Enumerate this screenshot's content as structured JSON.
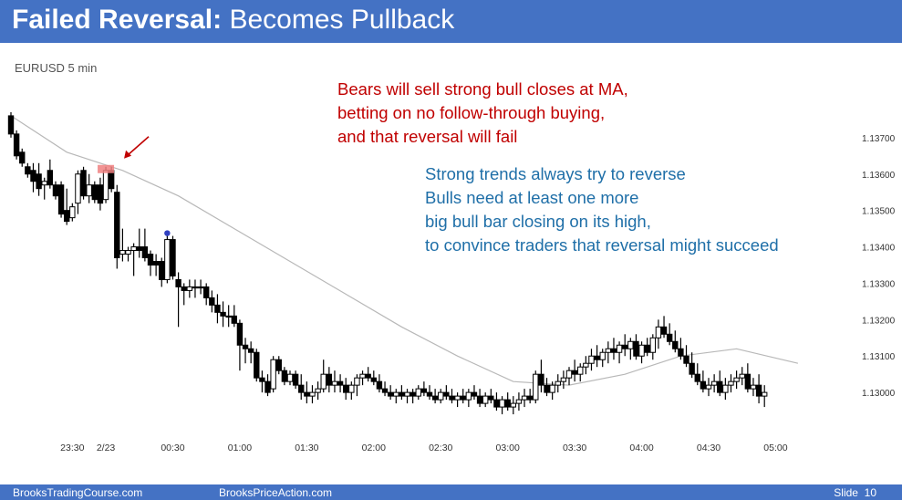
{
  "slide": {
    "title_bold": "Failed Reversal:",
    "title_rest": " Becomes Pullback"
  },
  "annotations": {
    "bears": [
      "Bears will sell strong bull closes at MA,",
      "betting on no follow-through buying,",
      "and that reversal will fail"
    ],
    "bulls": [
      "Strong trends always try to reverse",
      "Bulls need at least one more",
      "big bull bar closing on its high,",
      "to convince traders that reversal might succeed"
    ]
  },
  "footer": {
    "left": "BrooksTradingCourse.com",
    "middle": "BrooksPriceAction.com",
    "slide_label": "Slide",
    "slide_number": "10"
  },
  "colors": {
    "header_bg": "#4472c4",
    "bear_bar": "#000000",
    "bull_bar": "#ffffff",
    "moving_average": "#b8b8b8",
    "highlight_box": "#f08080",
    "arrow": "#c00000",
    "marker_dot": "#3040c0"
  },
  "chart_data": {
    "type": "candlestick",
    "label": "EURUSD 5 min",
    "xlabels": [
      "23:30",
      "2/23",
      "00:30",
      "01:00",
      "01:30",
      "02:00",
      "02:30",
      "03:00",
      "03:30",
      "04:00",
      "04:30",
      "05:00"
    ],
    "xlabel_bar_index": [
      11,
      17,
      29,
      41,
      53,
      65,
      77,
      89,
      101,
      113,
      125,
      137
    ],
    "ytick_labels": [
      "1.13000",
      "1.13100",
      "1.13200",
      "1.13300",
      "1.13400",
      "1.13500",
      "1.13600",
      "1.13700"
    ],
    "ytick_values": [
      1.13,
      1.131,
      1.132,
      1.133,
      1.134,
      1.135,
      1.136,
      1.137
    ],
    "ylim": [
      1.1288,
      1.1384
    ],
    "grid": false,
    "bars": [
      [
        1.1376,
        1.1377,
        1.137,
        1.1371
      ],
      [
        1.1371,
        1.1372,
        1.1364,
        1.1365
      ],
      [
        1.1366,
        1.1367,
        1.1362,
        1.1363
      ],
      [
        1.1362,
        1.1363,
        1.1359,
        1.136
      ],
      [
        1.1361,
        1.1363,
        1.1355,
        1.1358
      ],
      [
        1.136,
        1.1363,
        1.1354,
        1.1356
      ],
      [
        1.1357,
        1.1359,
        1.1353,
        1.1358
      ],
      [
        1.1361,
        1.1364,
        1.1356,
        1.1357
      ],
      [
        1.1357,
        1.1358,
        1.1353,
        1.1354
      ],
      [
        1.1357,
        1.1358,
        1.1348,
        1.1349
      ],
      [
        1.135,
        1.1356,
        1.1346,
        1.1347
      ],
      [
        1.1348,
        1.1352,
        1.1347,
        1.1351
      ],
      [
        1.1352,
        1.1361,
        1.1349,
        1.136
      ],
      [
        1.1361,
        1.1362,
        1.1353,
        1.1354
      ],
      [
        1.1354,
        1.136,
        1.1352,
        1.1357
      ],
      [
        1.1357,
        1.1358,
        1.1352,
        1.1353
      ],
      [
        1.1357,
        1.1359,
        1.135,
        1.1352
      ],
      [
        1.1353,
        1.1362,
        1.1352,
        1.1361
      ],
      [
        1.1361,
        1.1362,
        1.1355,
        1.1356
      ],
      [
        1.1355,
        1.1357,
        1.1334,
        1.1337
      ],
      [
        1.1338,
        1.1345,
        1.1336,
        1.1339
      ],
      [
        1.1338,
        1.134,
        1.1336,
        1.1339
      ],
      [
        1.1339,
        1.1341,
        1.1332,
        1.134
      ],
      [
        1.134,
        1.1345,
        1.1337,
        1.1339
      ],
      [
        1.134,
        1.1345,
        1.1336,
        1.1337
      ],
      [
        1.1338,
        1.1339,
        1.1332,
        1.1335
      ],
      [
        1.1336,
        1.1338,
        1.1332,
        1.1335
      ],
      [
        1.1336,
        1.1337,
        1.1329,
        1.1331
      ],
      [
        1.1331,
        1.1343,
        1.133,
        1.1342
      ],
      [
        1.1342,
        1.1343,
        1.1331,
        1.1332
      ],
      [
        1.1331,
        1.1333,
        1.1318,
        1.1329
      ],
      [
        1.1329,
        1.133,
        1.1324,
        1.1328
      ],
      [
        1.1328,
        1.1331,
        1.1326,
        1.1329
      ],
      [
        1.1329,
        1.1331,
        1.1326,
        1.1329
      ],
      [
        1.1329,
        1.1331,
        1.1327,
        1.1329
      ],
      [
        1.1329,
        1.133,
        1.1324,
        1.1326
      ],
      [
        1.1326,
        1.1328,
        1.1322,
        1.1324
      ],
      [
        1.1324,
        1.1327,
        1.1319,
        1.1322
      ],
      [
        1.1322,
        1.1325,
        1.1318,
        1.1321
      ],
      [
        1.1321,
        1.1324,
        1.1318,
        1.1321
      ],
      [
        1.1321,
        1.1324,
        1.1318,
        1.1319
      ],
      [
        1.1319,
        1.132,
        1.1306,
        1.1313
      ],
      [
        1.1313,
        1.1315,
        1.1308,
        1.1312
      ],
      [
        1.1312,
        1.1314,
        1.1308,
        1.1311
      ],
      [
        1.1311,
        1.1312,
        1.1303,
        1.1304
      ],
      [
        1.1304,
        1.1306,
        1.13,
        1.1303
      ],
      [
        1.1303,
        1.1305,
        1.1299,
        1.13
      ],
      [
        1.1301,
        1.131,
        1.13,
        1.1309
      ],
      [
        1.1309,
        1.131,
        1.1305,
        1.1306
      ],
      [
        1.1306,
        1.1307,
        1.1302,
        1.1303
      ],
      [
        1.1303,
        1.1306,
        1.1302,
        1.1305
      ],
      [
        1.1305,
        1.1306,
        1.1301,
        1.1302
      ],
      [
        1.1302,
        1.1305,
        1.1298,
        1.13
      ],
      [
        1.13,
        1.1303,
        1.1297,
        1.1299
      ],
      [
        1.1299,
        1.1302,
        1.1297,
        1.13
      ],
      [
        1.13,
        1.1303,
        1.1298,
        1.1301
      ],
      [
        1.1301,
        1.1309,
        1.13,
        1.1305
      ],
      [
        1.1305,
        1.1307,
        1.13,
        1.1302
      ],
      [
        1.1302,
        1.1306,
        1.13,
        1.1303
      ],
      [
        1.1303,
        1.1305,
        1.13,
        1.1302
      ],
      [
        1.1302,
        1.1304,
        1.1298,
        1.13
      ],
      [
        1.13,
        1.1303,
        1.1298,
        1.1302
      ],
      [
        1.1302,
        1.1305,
        1.1299,
        1.1304
      ],
      [
        1.1304,
        1.1306,
        1.1302,
        1.1305
      ],
      [
        1.1305,
        1.1307,
        1.1303,
        1.1304
      ],
      [
        1.1304,
        1.1306,
        1.1302,
        1.1303
      ],
      [
        1.1303,
        1.1305,
        1.13,
        1.1301
      ],
      [
        1.1301,
        1.1303,
        1.1299,
        1.13
      ],
      [
        1.13,
        1.1302,
        1.1298,
        1.1299
      ],
      [
        1.1299,
        1.1301,
        1.1297,
        1.13
      ],
      [
        1.13,
        1.1302,
        1.1298,
        1.1299
      ],
      [
        1.1299,
        1.1301,
        1.1297,
        1.13
      ],
      [
        1.13,
        1.1301,
        1.1297,
        1.1299
      ],
      [
        1.1299,
        1.1302,
        1.1298,
        1.1301
      ],
      [
        1.1301,
        1.1303,
        1.1299,
        1.13
      ],
      [
        1.13,
        1.1302,
        1.1298,
        1.1299
      ],
      [
        1.1299,
        1.1301,
        1.1297,
        1.1298
      ],
      [
        1.1298,
        1.1301,
        1.1297,
        1.13
      ],
      [
        1.13,
        1.1302,
        1.1298,
        1.1299
      ],
      [
        1.1299,
        1.1301,
        1.1297,
        1.1298
      ],
      [
        1.1298,
        1.13,
        1.1296,
        1.1299
      ],
      [
        1.1299,
        1.1301,
        1.1297,
        1.1298
      ],
      [
        1.1298,
        1.1301,
        1.1296,
        1.13
      ],
      [
        1.13,
        1.1302,
        1.1298,
        1.1299
      ],
      [
        1.1299,
        1.1301,
        1.1296,
        1.1297
      ],
      [
        1.1297,
        1.13,
        1.1296,
        1.1299
      ],
      [
        1.1299,
        1.1301,
        1.1297,
        1.1298
      ],
      [
        1.1298,
        1.13,
        1.1295,
        1.1296
      ],
      [
        1.1296,
        1.1299,
        1.1294,
        1.1298
      ],
      [
        1.1298,
        1.13,
        1.1295,
        1.1296
      ],
      [
        1.1296,
        1.1299,
        1.1294,
        1.1297
      ],
      [
        1.1297,
        1.13,
        1.1295,
        1.1298
      ],
      [
        1.1298,
        1.1301,
        1.1296,
        1.1299
      ],
      [
        1.1299,
        1.1301,
        1.1297,
        1.1298
      ],
      [
        1.1298,
        1.1306,
        1.1297,
        1.1305
      ],
      [
        1.1305,
        1.1309,
        1.13,
        1.1302
      ],
      [
        1.1302,
        1.1304,
        1.1299,
        1.13
      ],
      [
        1.13,
        1.1303,
        1.1298,
        1.1302
      ],
      [
        1.1302,
        1.1305,
        1.13,
        1.1303
      ],
      [
        1.1303,
        1.1306,
        1.1301,
        1.1304
      ],
      [
        1.1304,
        1.1307,
        1.1302,
        1.1306
      ],
      [
        1.1306,
        1.1309,
        1.1303,
        1.1305
      ],
      [
        1.1305,
        1.1308,
        1.1303,
        1.1307
      ],
      [
        1.1307,
        1.131,
        1.1305,
        1.1308
      ],
      [
        1.1308,
        1.1312,
        1.1306,
        1.131
      ],
      [
        1.131,
        1.1313,
        1.1307,
        1.1309
      ],
      [
        1.1309,
        1.1312,
        1.1307,
        1.1311
      ],
      [
        1.1311,
        1.1314,
        1.1308,
        1.1312
      ],
      [
        1.1312,
        1.1315,
        1.1309,
        1.1311
      ],
      [
        1.1311,
        1.1314,
        1.1308,
        1.1313
      ],
      [
        1.1313,
        1.1316,
        1.131,
        1.1312
      ],
      [
        1.1312,
        1.1315,
        1.1309,
        1.1314
      ],
      [
        1.1314,
        1.1316,
        1.1309,
        1.131
      ],
      [
        1.131,
        1.1314,
        1.1308,
        1.1313
      ],
      [
        1.1313,
        1.1315,
        1.131,
        1.1311
      ],
      [
        1.1311,
        1.1316,
        1.1309,
        1.1315
      ],
      [
        1.1315,
        1.132,
        1.1312,
        1.1318
      ],
      [
        1.1318,
        1.1321,
        1.1315,
        1.1316
      ],
      [
        1.1316,
        1.1319,
        1.1313,
        1.1314
      ],
      [
        1.1314,
        1.1317,
        1.1311,
        1.1312
      ],
      [
        1.1312,
        1.1315,
        1.1309,
        1.131
      ],
      [
        1.131,
        1.1313,
        1.1307,
        1.1308
      ],
      [
        1.1308,
        1.1311,
        1.1304,
        1.1305
      ],
      [
        1.1305,
        1.1308,
        1.1302,
        1.1303
      ],
      [
        1.1303,
        1.1306,
        1.13,
        1.1301
      ],
      [
        1.1301,
        1.1304,
        1.1299,
        1.1302
      ],
      [
        1.1302,
        1.1305,
        1.13,
        1.1303
      ],
      [
        1.1303,
        1.1306,
        1.1299,
        1.13
      ],
      [
        1.13,
        1.1304,
        1.1298,
        1.1302
      ],
      [
        1.1302,
        1.1305,
        1.13,
        1.1303
      ],
      [
        1.1303,
        1.1306,
        1.1301,
        1.1304
      ],
      [
        1.1304,
        1.1307,
        1.1302,
        1.1305
      ],
      [
        1.1305,
        1.1308,
        1.13,
        1.1301
      ],
      [
        1.1301,
        1.1304,
        1.1299,
        1.1302
      ],
      [
        1.1302,
        1.1305,
        1.1297,
        1.1299
      ],
      [
        1.1299,
        1.1302,
        1.1296,
        1.13
      ]
    ],
    "moving_average": [
      [
        0,
        1.1376
      ],
      [
        10,
        1.1366
      ],
      [
        20,
        1.1361
      ],
      [
        30,
        1.1354
      ],
      [
        40,
        1.1345
      ],
      [
        50,
        1.1336
      ],
      [
        60,
        1.1327
      ],
      [
        70,
        1.1318
      ],
      [
        80,
        1.131
      ],
      [
        90,
        1.1303
      ],
      [
        100,
        1.1302
      ],
      [
        110,
        1.1305
      ],
      [
        120,
        1.131
      ],
      [
        130,
        1.1312
      ],
      [
        141,
        1.1308
      ]
    ],
    "highlight_bar_index": 17,
    "marker_bar_index": 28
  }
}
